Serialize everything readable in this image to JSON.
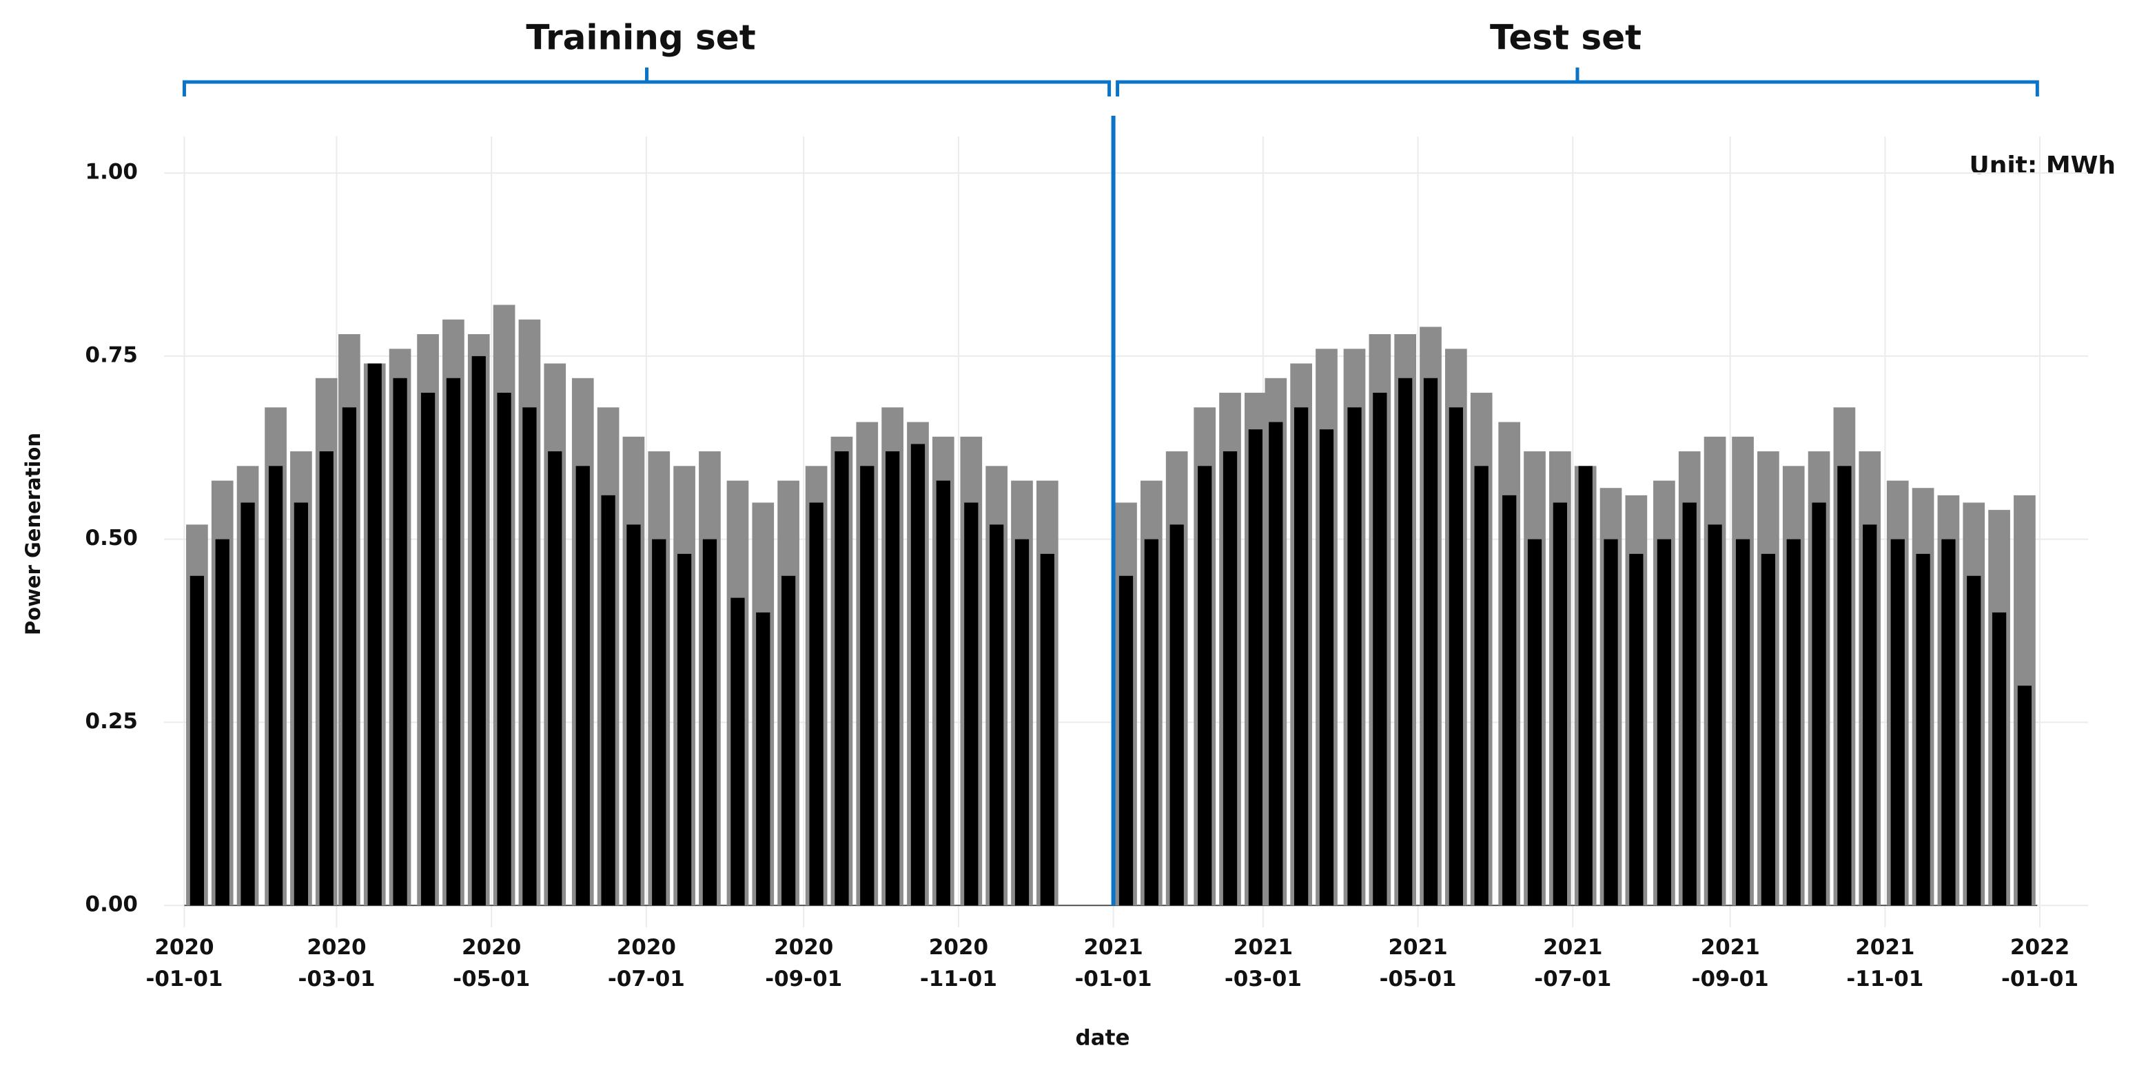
{
  "chart_data": {
    "type": "bar",
    "annotations": {
      "training": "Training set",
      "test": "Test set",
      "unit": "Unit: MWh"
    },
    "split_date": "2021-01-01",
    "x_label": "date",
    "y_label": "Power Generation",
    "x": [
      "2020-01-01",
      "2020-01-11",
      "2020-01-21",
      "2020-02-01",
      "2020-02-11",
      "2020-02-21",
      "2020-03-01",
      "2020-03-11",
      "2020-03-21",
      "2020-04-01",
      "2020-04-11",
      "2020-04-21",
      "2020-05-01",
      "2020-05-11",
      "2020-05-21",
      "2020-06-01",
      "2020-06-11",
      "2020-06-21",
      "2020-07-01",
      "2020-07-11",
      "2020-07-21",
      "2020-08-01",
      "2020-08-11",
      "2020-08-21",
      "2020-09-01",
      "2020-09-11",
      "2020-09-21",
      "2020-10-01",
      "2020-10-11",
      "2020-10-21",
      "2020-11-01",
      "2020-11-11",
      "2020-11-21",
      "2020-12-01",
      "2020-12-11",
      "2020-12-21",
      "2021-01-01",
      "2021-01-11",
      "2021-01-21",
      "2021-02-01",
      "2021-02-11",
      "2021-02-21",
      "2021-03-01",
      "2021-03-11",
      "2021-03-21",
      "2021-04-01",
      "2021-04-11",
      "2021-04-21",
      "2021-05-01",
      "2021-05-11",
      "2021-05-21",
      "2021-06-01",
      "2021-06-11",
      "2021-06-21",
      "2021-07-01",
      "2021-07-11",
      "2021-07-21",
      "2021-08-01",
      "2021-08-11",
      "2021-08-21",
      "2021-09-01",
      "2021-09-11",
      "2021-09-21",
      "2021-10-01",
      "2021-10-11",
      "2021-10-21",
      "2021-11-01",
      "2021-11-11",
      "2021-11-21",
      "2021-12-01",
      "2021-12-11",
      "2021-12-21"
    ],
    "series": [
      {
        "color": "#8c8c8c",
        "values": [
          0.52,
          0.58,
          0.6,
          0.68,
          0.62,
          0.72,
          0.78,
          0.74,
          0.76,
          0.78,
          0.8,
          0.78,
          0.82,
          0.8,
          0.74,
          0.72,
          0.68,
          0.64,
          0.62,
          0.6,
          0.62,
          0.58,
          0.55,
          0.58,
          0.6,
          0.64,
          0.66,
          0.68,
          0.66,
          0.64,
          0.64,
          0.6,
          0.58,
          0.58,
          0,
          0,
          0.55,
          0.58,
          0.62,
          0.68,
          0.7,
          0.7,
          0.72,
          0.74,
          0.76,
          0.76,
          0.78,
          0.78,
          0.79,
          0.76,
          0.7,
          0.66,
          0.62,
          0.62,
          0.6,
          0.57,
          0.56,
          0.58,
          0.62,
          0.64,
          0.64,
          0.62,
          0.6,
          0.62,
          0.68,
          0.62,
          0.58,
          0.57,
          0.56,
          0.55,
          0.54,
          0.56
        ]
      },
      {
        "color": "#000000",
        "values": [
          0.45,
          0.5,
          0.55,
          0.6,
          0.55,
          0.62,
          0.68,
          0.74,
          0.72,
          0.7,
          0.72,
          0.75,
          0.7,
          0.68,
          0.62,
          0.6,
          0.56,
          0.52,
          0.5,
          0.48,
          0.5,
          0.42,
          0.4,
          0.45,
          0.55,
          0.62,
          0.6,
          0.62,
          0.63,
          0.58,
          0.55,
          0.52,
          0.5,
          0.48,
          0,
          0,
          0.45,
          0.5,
          0.52,
          0.6,
          0.62,
          0.65,
          0.66,
          0.68,
          0.65,
          0.68,
          0.7,
          0.72,
          0.72,
          0.68,
          0.6,
          0.56,
          0.5,
          0.55,
          0.6,
          0.5,
          0.48,
          0.5,
          0.55,
          0.52,
          0.5,
          0.48,
          0.5,
          0.55,
          0.6,
          0.52,
          0.5,
          0.48,
          0.5,
          0.45,
          0.4,
          0.3
        ]
      }
    ],
    "xlim": [
      "2019-12-24",
      "2022-01-20"
    ],
    "xticks": [
      {
        "value": "2020-01-01",
        "label": "2020\n-01-01"
      },
      {
        "value": "2020-03-01",
        "label": "2020\n-03-01"
      },
      {
        "value": "2020-05-01",
        "label": "2020\n-05-01"
      },
      {
        "value": "2020-07-01",
        "label": "2020\n-07-01"
      },
      {
        "value": "2020-09-01",
        "label": "2020\n-09-01"
      },
      {
        "value": "2020-11-01",
        "label": "2020\n-11-01"
      },
      {
        "value": "2021-01-01",
        "label": "2021\n-01-01"
      },
      {
        "value": "2021-03-01",
        "label": "2021\n-03-01"
      },
      {
        "value": "2021-05-01",
        "label": "2021\n-05-01"
      },
      {
        "value": "2021-07-01",
        "label": "2021\n-07-01"
      },
      {
        "value": "2021-09-01",
        "label": "2021\n-09-01"
      },
      {
        "value": "2021-11-01",
        "label": "2021\n-11-01"
      },
      {
        "value": "2022-01-01",
        "label": "2022\n-01-01"
      }
    ],
    "ylim": [
      -0.03,
      1.05
    ],
    "yticks": [
      {
        "value": 0,
        "label": "0.00"
      },
      {
        "value": 0.25,
        "label": "0.25"
      },
      {
        "value": 0.5,
        "label": "0.50"
      },
      {
        "value": 0.75,
        "label": "0.75"
      },
      {
        "value": 1,
        "label": "1.00"
      }
    ],
    "grid": true
  }
}
